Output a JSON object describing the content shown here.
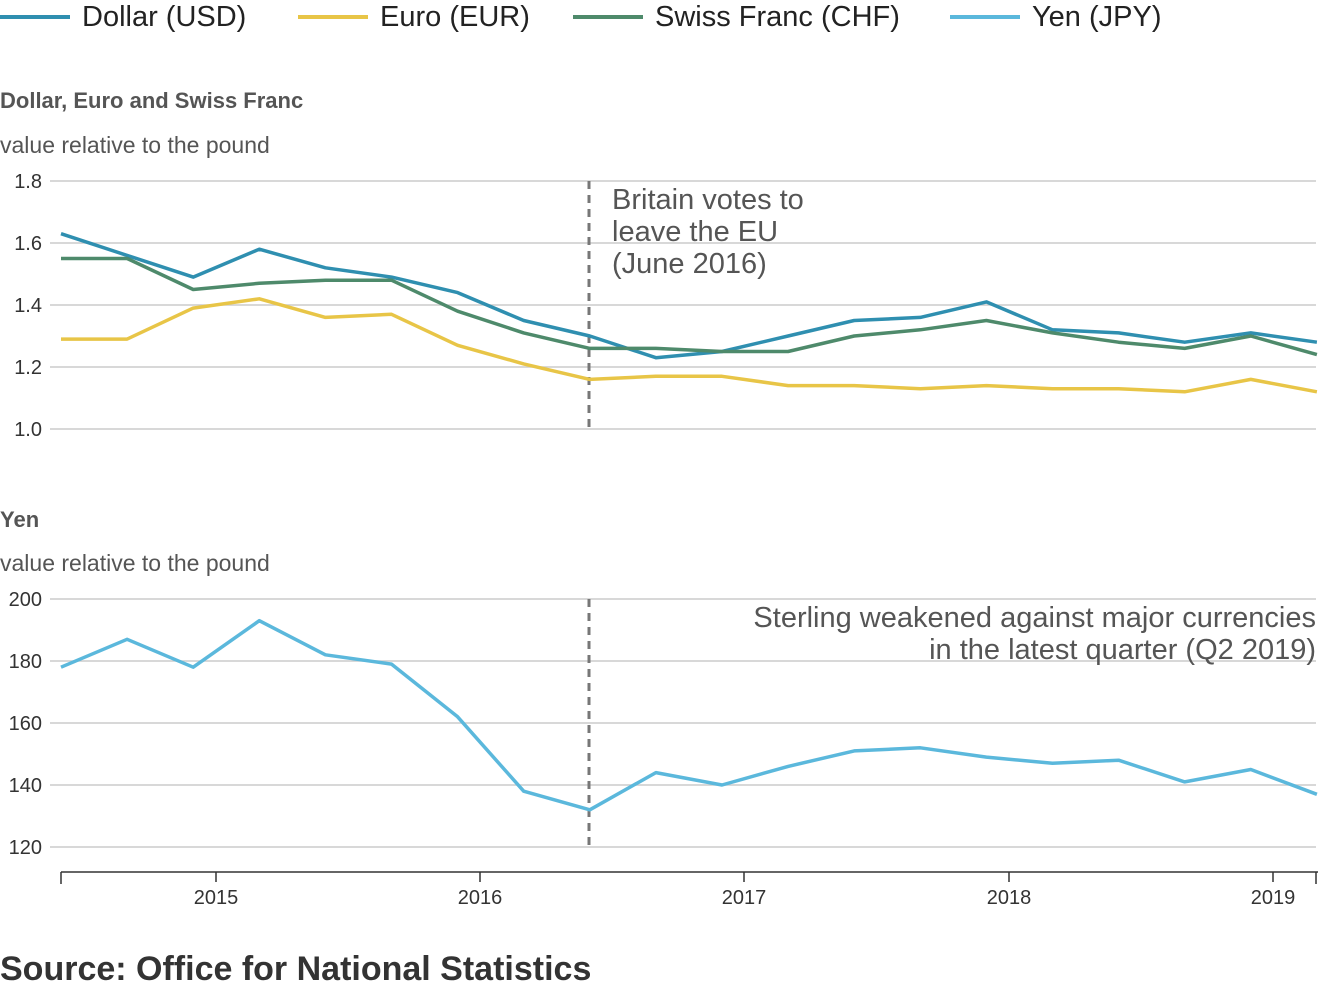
{
  "legend": [
    {
      "label": "Dollar (USD)",
      "color": "#2f8fb0"
    },
    {
      "label": "Euro (EUR)",
      "color": "#e8c547"
    },
    {
      "label": "Swiss Franc (CHF)",
      "color": "#4e8a6b"
    },
    {
      "label": "Yen (JPY)",
      "color": "#5bb8dc"
    }
  ],
  "source": "Source: Office for National Statistics",
  "chart_data": [
    {
      "type": "line",
      "title": "Dollar, Euro and Swiss Franc",
      "ylabel": "value relative to the pound",
      "ylim": [
        1.0,
        1.8
      ],
      "yticks": [
        "1.0",
        "1.2",
        "1.4",
        "1.6",
        "1.8"
      ],
      "grid": true,
      "x": [
        "2014 Q3",
        "2014 Q4",
        "2015 Q1",
        "2015 Q2",
        "2015 Q3",
        "2015 Q4",
        "2016 Q1",
        "2016 Q2",
        "2016 Q3",
        "2016 Q4",
        "2017 Q1",
        "2017 Q2",
        "2017 Q3",
        "2017 Q4",
        "2018 Q1",
        "2018 Q2",
        "2018 Q3",
        "2018 Q4",
        "2019 Q1",
        "2019 Q2"
      ],
      "series": [
        {
          "name": "Dollar (USD)",
          "color": "#2f8fb0",
          "values": [
            1.63,
            1.56,
            1.49,
            1.58,
            1.52,
            1.49,
            1.44,
            1.35,
            1.3,
            1.23,
            1.25,
            1.3,
            1.35,
            1.36,
            1.41,
            1.32,
            1.31,
            1.28,
            1.31,
            1.28
          ]
        },
        {
          "name": "Euro (EUR)",
          "color": "#e8c547",
          "values": [
            1.29,
            1.29,
            1.39,
            1.42,
            1.36,
            1.37,
            1.27,
            1.21,
            1.16,
            1.17,
            1.17,
            1.14,
            1.14,
            1.13,
            1.14,
            1.13,
            1.13,
            1.12,
            1.16,
            1.12
          ]
        },
        {
          "name": "Swiss Franc (CHF)",
          "color": "#4e8a6b",
          "values": [
            1.55,
            1.55,
            1.45,
            1.47,
            1.48,
            1.48,
            1.38,
            1.31,
            1.26,
            1.26,
            1.25,
            1.25,
            1.3,
            1.32,
            1.35,
            1.31,
            1.28,
            1.26,
            1.3,
            1.24
          ]
        }
      ],
      "annotation": {
        "lines": [
          "Britain votes to",
          "leave the EU",
          "(June 2016)"
        ],
        "x": "2016 Q2"
      }
    },
    {
      "type": "line",
      "title": "Yen",
      "ylabel": "value relative to the pound",
      "ylim": [
        120,
        200
      ],
      "yticks": [
        "120",
        "140",
        "160",
        "180",
        "200"
      ],
      "grid": true,
      "x": [
        "2014 Q3",
        "2014 Q4",
        "2015 Q1",
        "2015 Q2",
        "2015 Q3",
        "2015 Q4",
        "2016 Q1",
        "2016 Q2",
        "2016 Q3",
        "2016 Q4",
        "2017 Q1",
        "2017 Q2",
        "2017 Q3",
        "2017 Q4",
        "2018 Q1",
        "2018 Q2",
        "2018 Q3",
        "2018 Q4",
        "2019 Q1",
        "2019 Q2"
      ],
      "series": [
        {
          "name": "Yen (JPY)",
          "color": "#5bb8dc",
          "values": [
            178,
            187,
            178,
            193,
            182,
            179,
            162,
            138,
            132,
            144,
            140,
            146,
            151,
            152,
            149,
            147,
            148,
            141,
            145,
            137
          ]
        }
      ],
      "annotation": {
        "lines": [
          "Sterling weakened against major currencies",
          "in the latest quarter (Q2 2019)"
        ],
        "x": "2016 Q2"
      },
      "xticks": [
        "2015",
        "2016",
        "2017",
        "2018",
        "2019"
      ]
    }
  ]
}
